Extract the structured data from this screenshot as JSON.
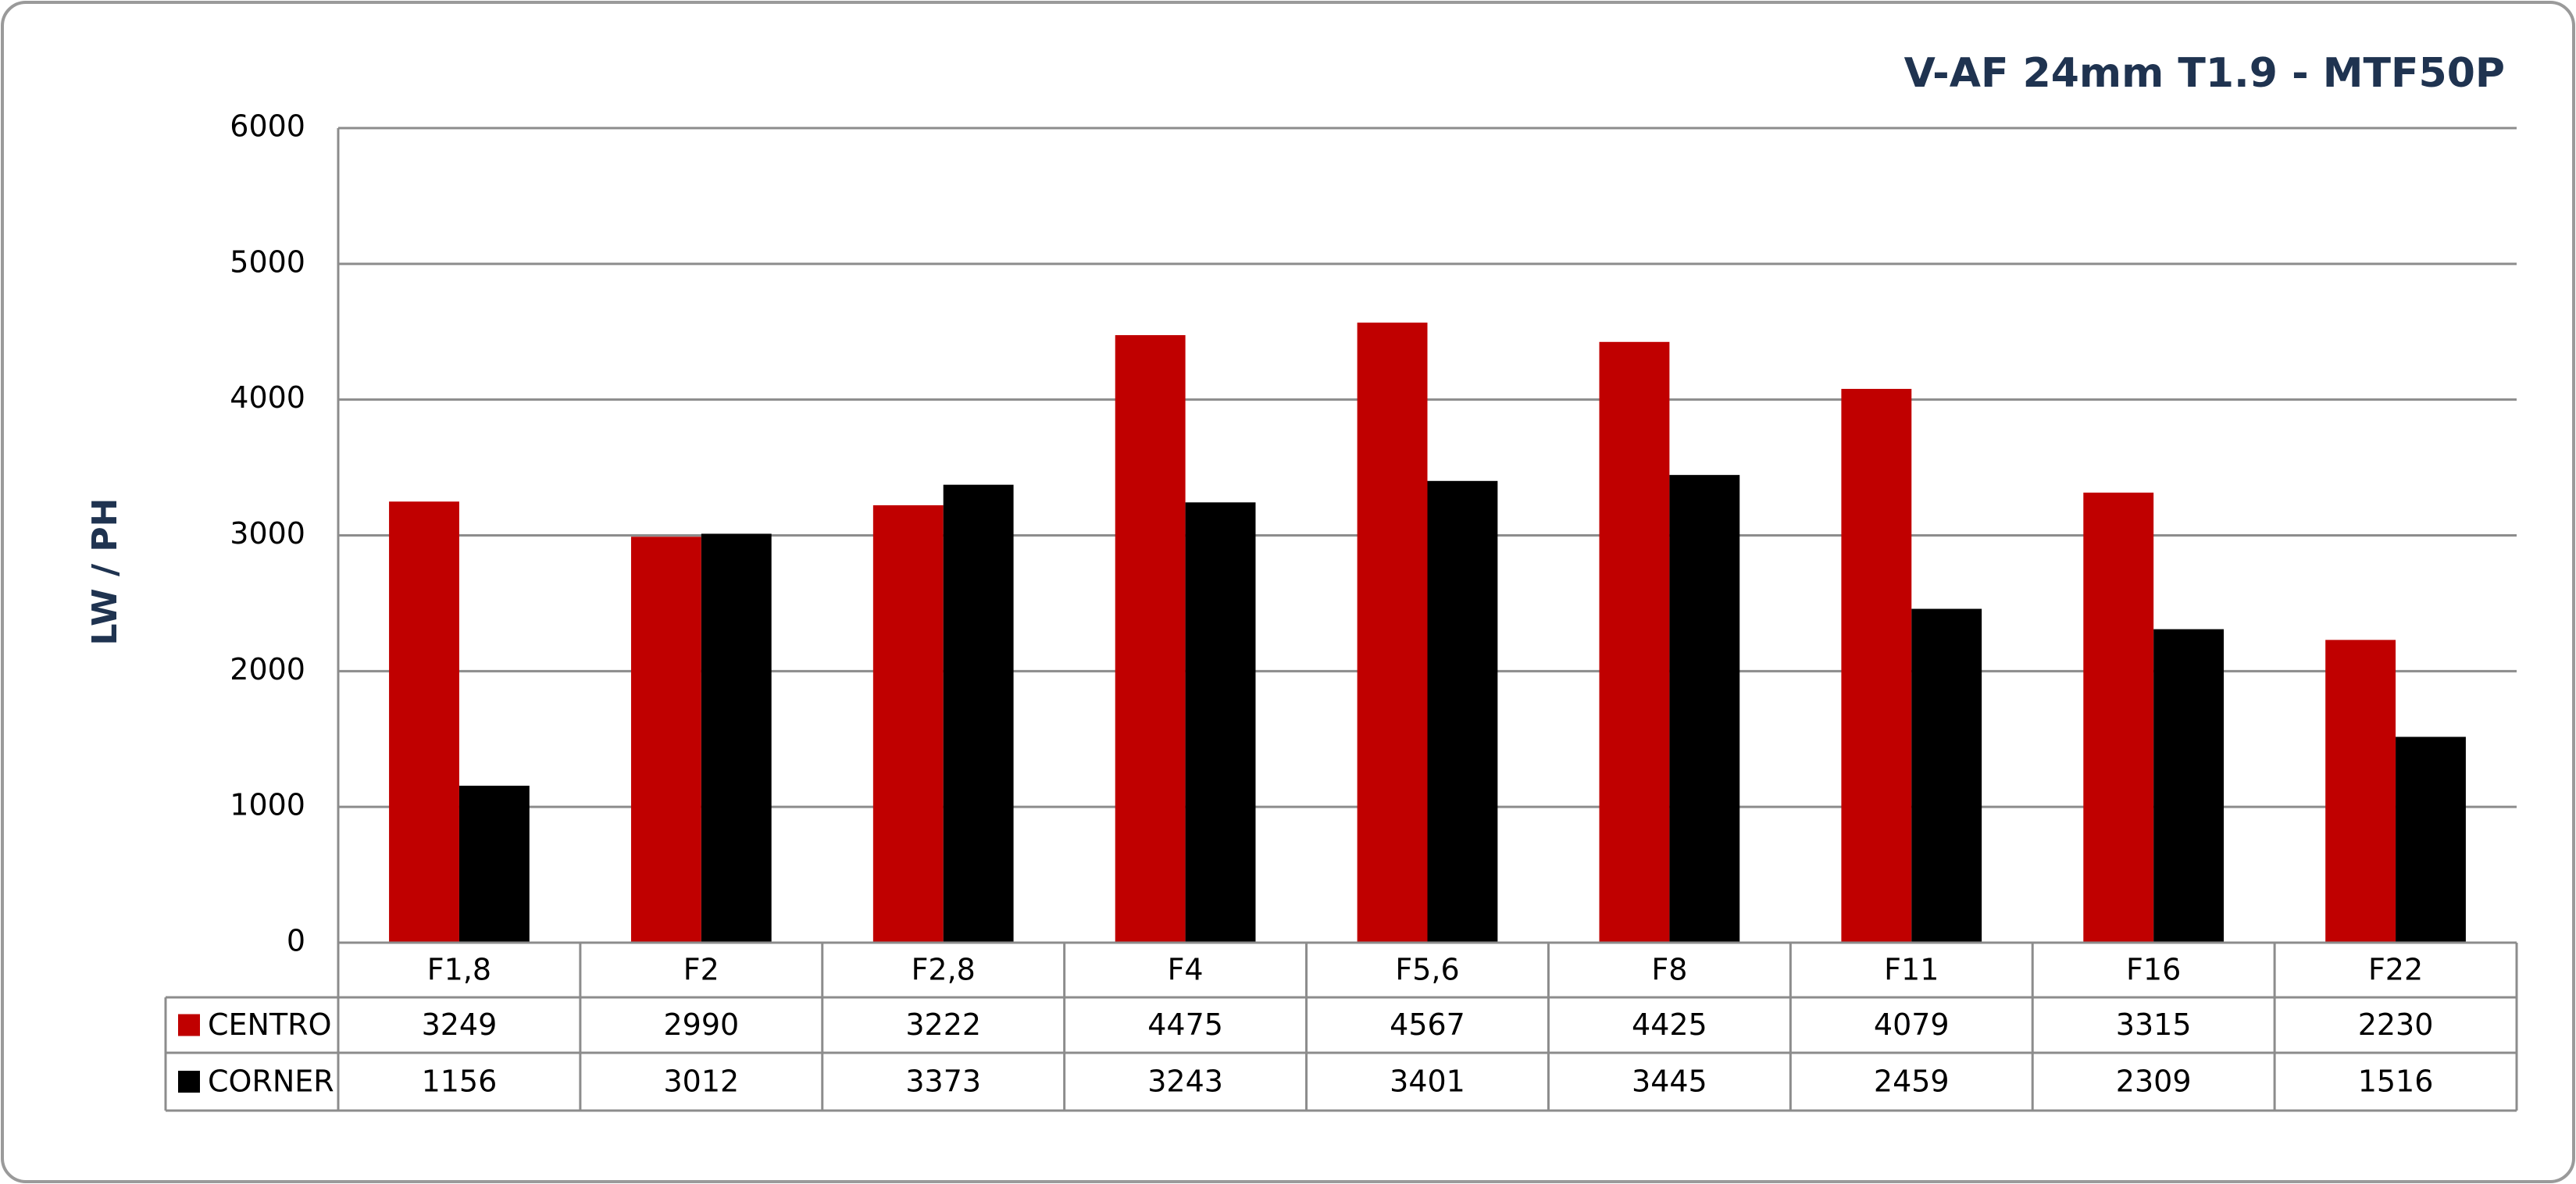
{
  "chart_data": {
    "type": "bar",
    "title": "V-AF 24mm T1.9 - MTF50P",
    "y_label": "LW / PH",
    "categories": [
      "F1,8",
      "F2",
      "F2,8",
      "F4",
      "F5,6",
      "F8",
      "F11",
      "F16",
      "F22"
    ],
    "series": [
      {
        "name": "CENTRO",
        "color": "#c00000",
        "values": [
          3249,
          2990,
          3222,
          4475,
          4567,
          4425,
          4079,
          3315,
          2230
        ]
      },
      {
        "name": "CORNER",
        "color": "#000000",
        "values": [
          1156,
          3012,
          3373,
          3243,
          3401,
          3445,
          2459,
          2309,
          1516
        ]
      }
    ],
    "ylim": [
      0,
      6000
    ],
    "yticks": [
      0,
      1000,
      2000,
      3000,
      4000,
      5000,
      6000
    ],
    "grid": true
  }
}
